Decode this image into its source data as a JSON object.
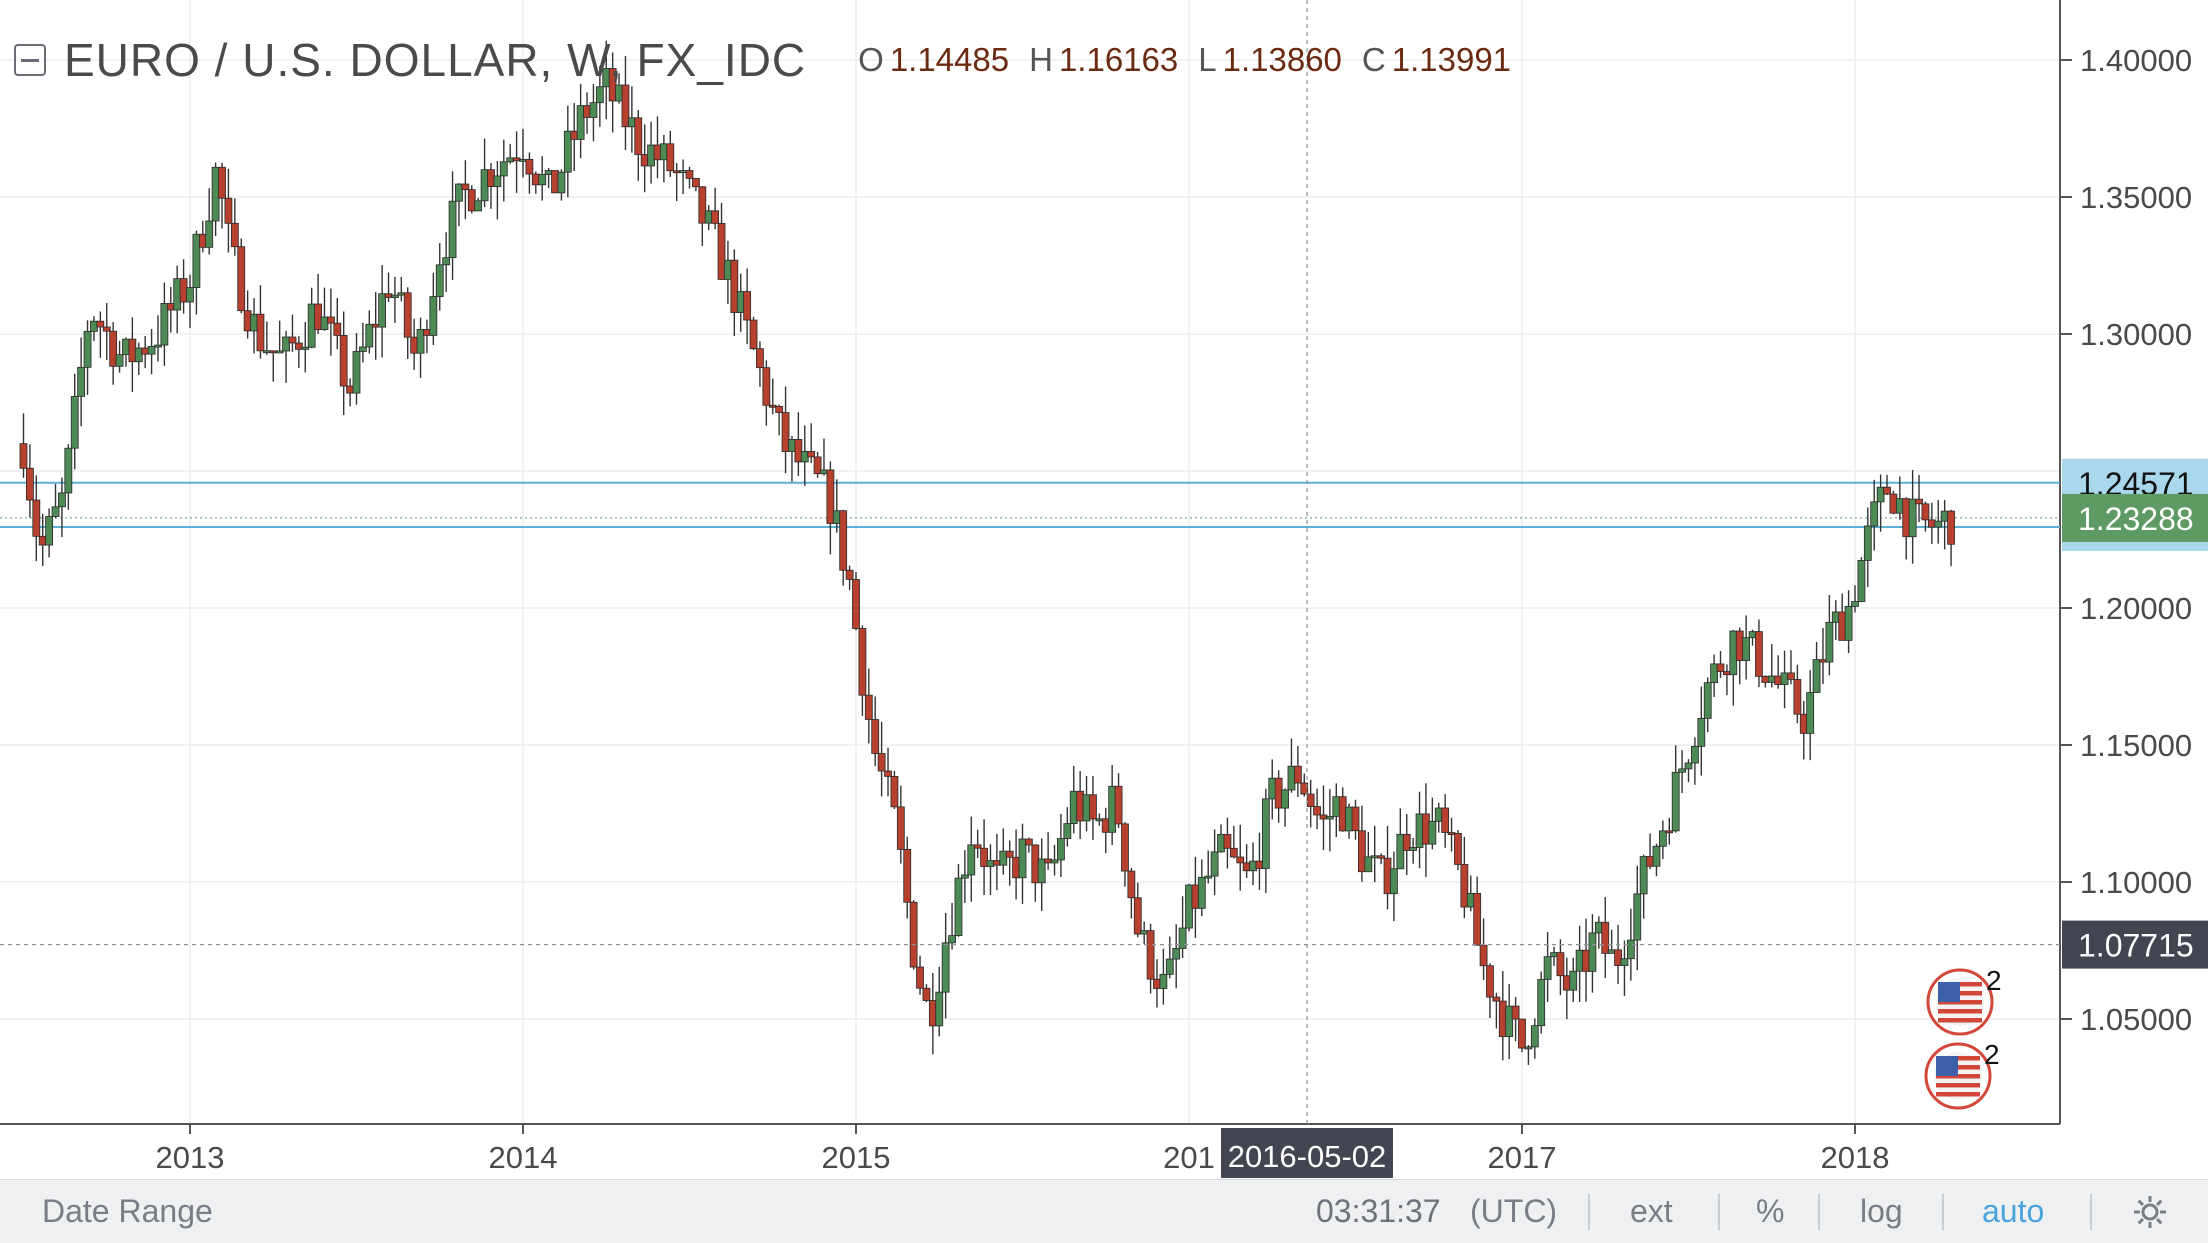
{
  "header": {
    "symbol": "EURO / U.S. DOLLAR, W, FX_IDC",
    "ohlc": [
      {
        "key": "O",
        "value": "1.14485"
      },
      {
        "key": "H",
        "value": "1.16163"
      },
      {
        "key": "L",
        "value": "1.13860"
      },
      {
        "key": "C",
        "value": "1.13991"
      }
    ]
  },
  "chart_data": {
    "type": "candlestick",
    "interval": "W",
    "ylim": [
      1.015,
      1.42
    ],
    "y_ticks": [
      "1.40000",
      "1.35000",
      "1.30000",
      "1.20000",
      "1.15000",
      "1.10000",
      "1.05000"
    ],
    "x_ticks": [
      "2013",
      "2014",
      "2015",
      "2017",
      "2018"
    ],
    "x_tick_partial": "201",
    "crosshair_date_label": "2016-05-02",
    "crosshair_price": "1.07715",
    "horizontal_lines": [
      {
        "price": "1.24571",
        "color": "#5bb0d8"
      },
      {
        "price": "1.22958",
        "color": "#5bb0d8"
      }
    ],
    "last_price": "1.23288",
    "colors": {
      "up": "#4e8a56",
      "down": "#b8402e",
      "wick": "#333333",
      "hline": "#5bb0d8",
      "last_price_bg": "#5e9a64",
      "label_bg": "#a9d7ec",
      "crosshair_bg": "#434651"
    },
    "anchor_points": [
      [
        2012.5,
        1.26
      ],
      [
        2012.55,
        1.22
      ],
      [
        2012.62,
        1.24
      ],
      [
        2012.7,
        1.31
      ],
      [
        2012.8,
        1.29
      ],
      [
        2012.9,
        1.3
      ],
      [
        2013.0,
        1.32
      ],
      [
        2013.08,
        1.36
      ],
      [
        2013.12,
        1.33
      ],
      [
        2013.2,
        1.3
      ],
      [
        2013.28,
        1.29
      ],
      [
        2013.38,
        1.31
      ],
      [
        2013.48,
        1.28
      ],
      [
        2013.6,
        1.32
      ],
      [
        2013.68,
        1.29
      ],
      [
        2013.75,
        1.33
      ],
      [
        2013.82,
        1.35
      ],
      [
        2013.9,
        1.36
      ],
      [
        2014.0,
        1.37
      ],
      [
        2014.08,
        1.35
      ],
      [
        2014.18,
        1.38
      ],
      [
        2014.25,
        1.39
      ],
      [
        2014.35,
        1.37
      ],
      [
        2014.45,
        1.36
      ],
      [
        2014.55,
        1.34
      ],
      [
        2014.62,
        1.32
      ],
      [
        2014.7,
        1.29
      ],
      [
        2014.78,
        1.26
      ],
      [
        2014.85,
        1.25
      ],
      [
        2014.92,
        1.24
      ],
      [
        2014.98,
        1.21
      ],
      [
        2015.05,
        1.15
      ],
      [
        2015.12,
        1.12
      ],
      [
        2015.18,
        1.07
      ],
      [
        2015.22,
        1.05
      ],
      [
        2015.27,
        1.08
      ],
      [
        2015.35,
        1.12
      ],
      [
        2015.42,
        1.1
      ],
      [
        2015.5,
        1.11
      ],
      [
        2015.58,
        1.1
      ],
      [
        2015.65,
        1.13
      ],
      [
        2015.72,
        1.12
      ],
      [
        2015.78,
        1.13
      ],
      [
        2015.85,
        1.08
      ],
      [
        2015.93,
        1.06
      ],
      [
        2016.0,
        1.09
      ],
      [
        2016.1,
        1.11
      ],
      [
        2016.18,
        1.1
      ],
      [
        2016.25,
        1.13
      ],
      [
        2016.33,
        1.14
      ],
      [
        2016.4,
        1.12
      ],
      [
        2016.45,
        1.13
      ],
      [
        2016.52,
        1.11
      ],
      [
        2016.58,
        1.1
      ],
      [
        2016.66,
        1.12
      ],
      [
        2016.75,
        1.12
      ],
      [
        2016.82,
        1.1
      ],
      [
        2016.88,
        1.07
      ],
      [
        2016.95,
        1.05
      ],
      [
        2017.0,
        1.04
      ],
      [
        2017.08,
        1.07
      ],
      [
        2017.15,
        1.06
      ],
      [
        2017.22,
        1.08
      ],
      [
        2017.28,
        1.07
      ],
      [
        2017.36,
        1.1
      ],
      [
        2017.45,
        1.13
      ],
      [
        2017.55,
        1.17
      ],
      [
        2017.64,
        1.19
      ],
      [
        2017.72,
        1.18
      ],
      [
        2017.78,
        1.17
      ],
      [
        2017.85,
        1.16
      ],
      [
        2017.92,
        1.19
      ],
      [
        2017.98,
        1.2
      ],
      [
        2018.05,
        1.23
      ],
      [
        2018.1,
        1.245
      ],
      [
        2018.18,
        1.23
      ],
      [
        2018.25,
        1.23
      ],
      [
        2018.28,
        1.232
      ]
    ],
    "events": [
      {
        "icon": "us-flag-icon",
        "count": "2"
      },
      {
        "icon": "us-flag-icon",
        "count": "2"
      }
    ]
  },
  "status_bar": {
    "date_range": "Date Range",
    "time": "03:31:37",
    "tz": "(UTC)",
    "ext": "ext",
    "percent": "%",
    "log": "log",
    "auto": "auto"
  }
}
